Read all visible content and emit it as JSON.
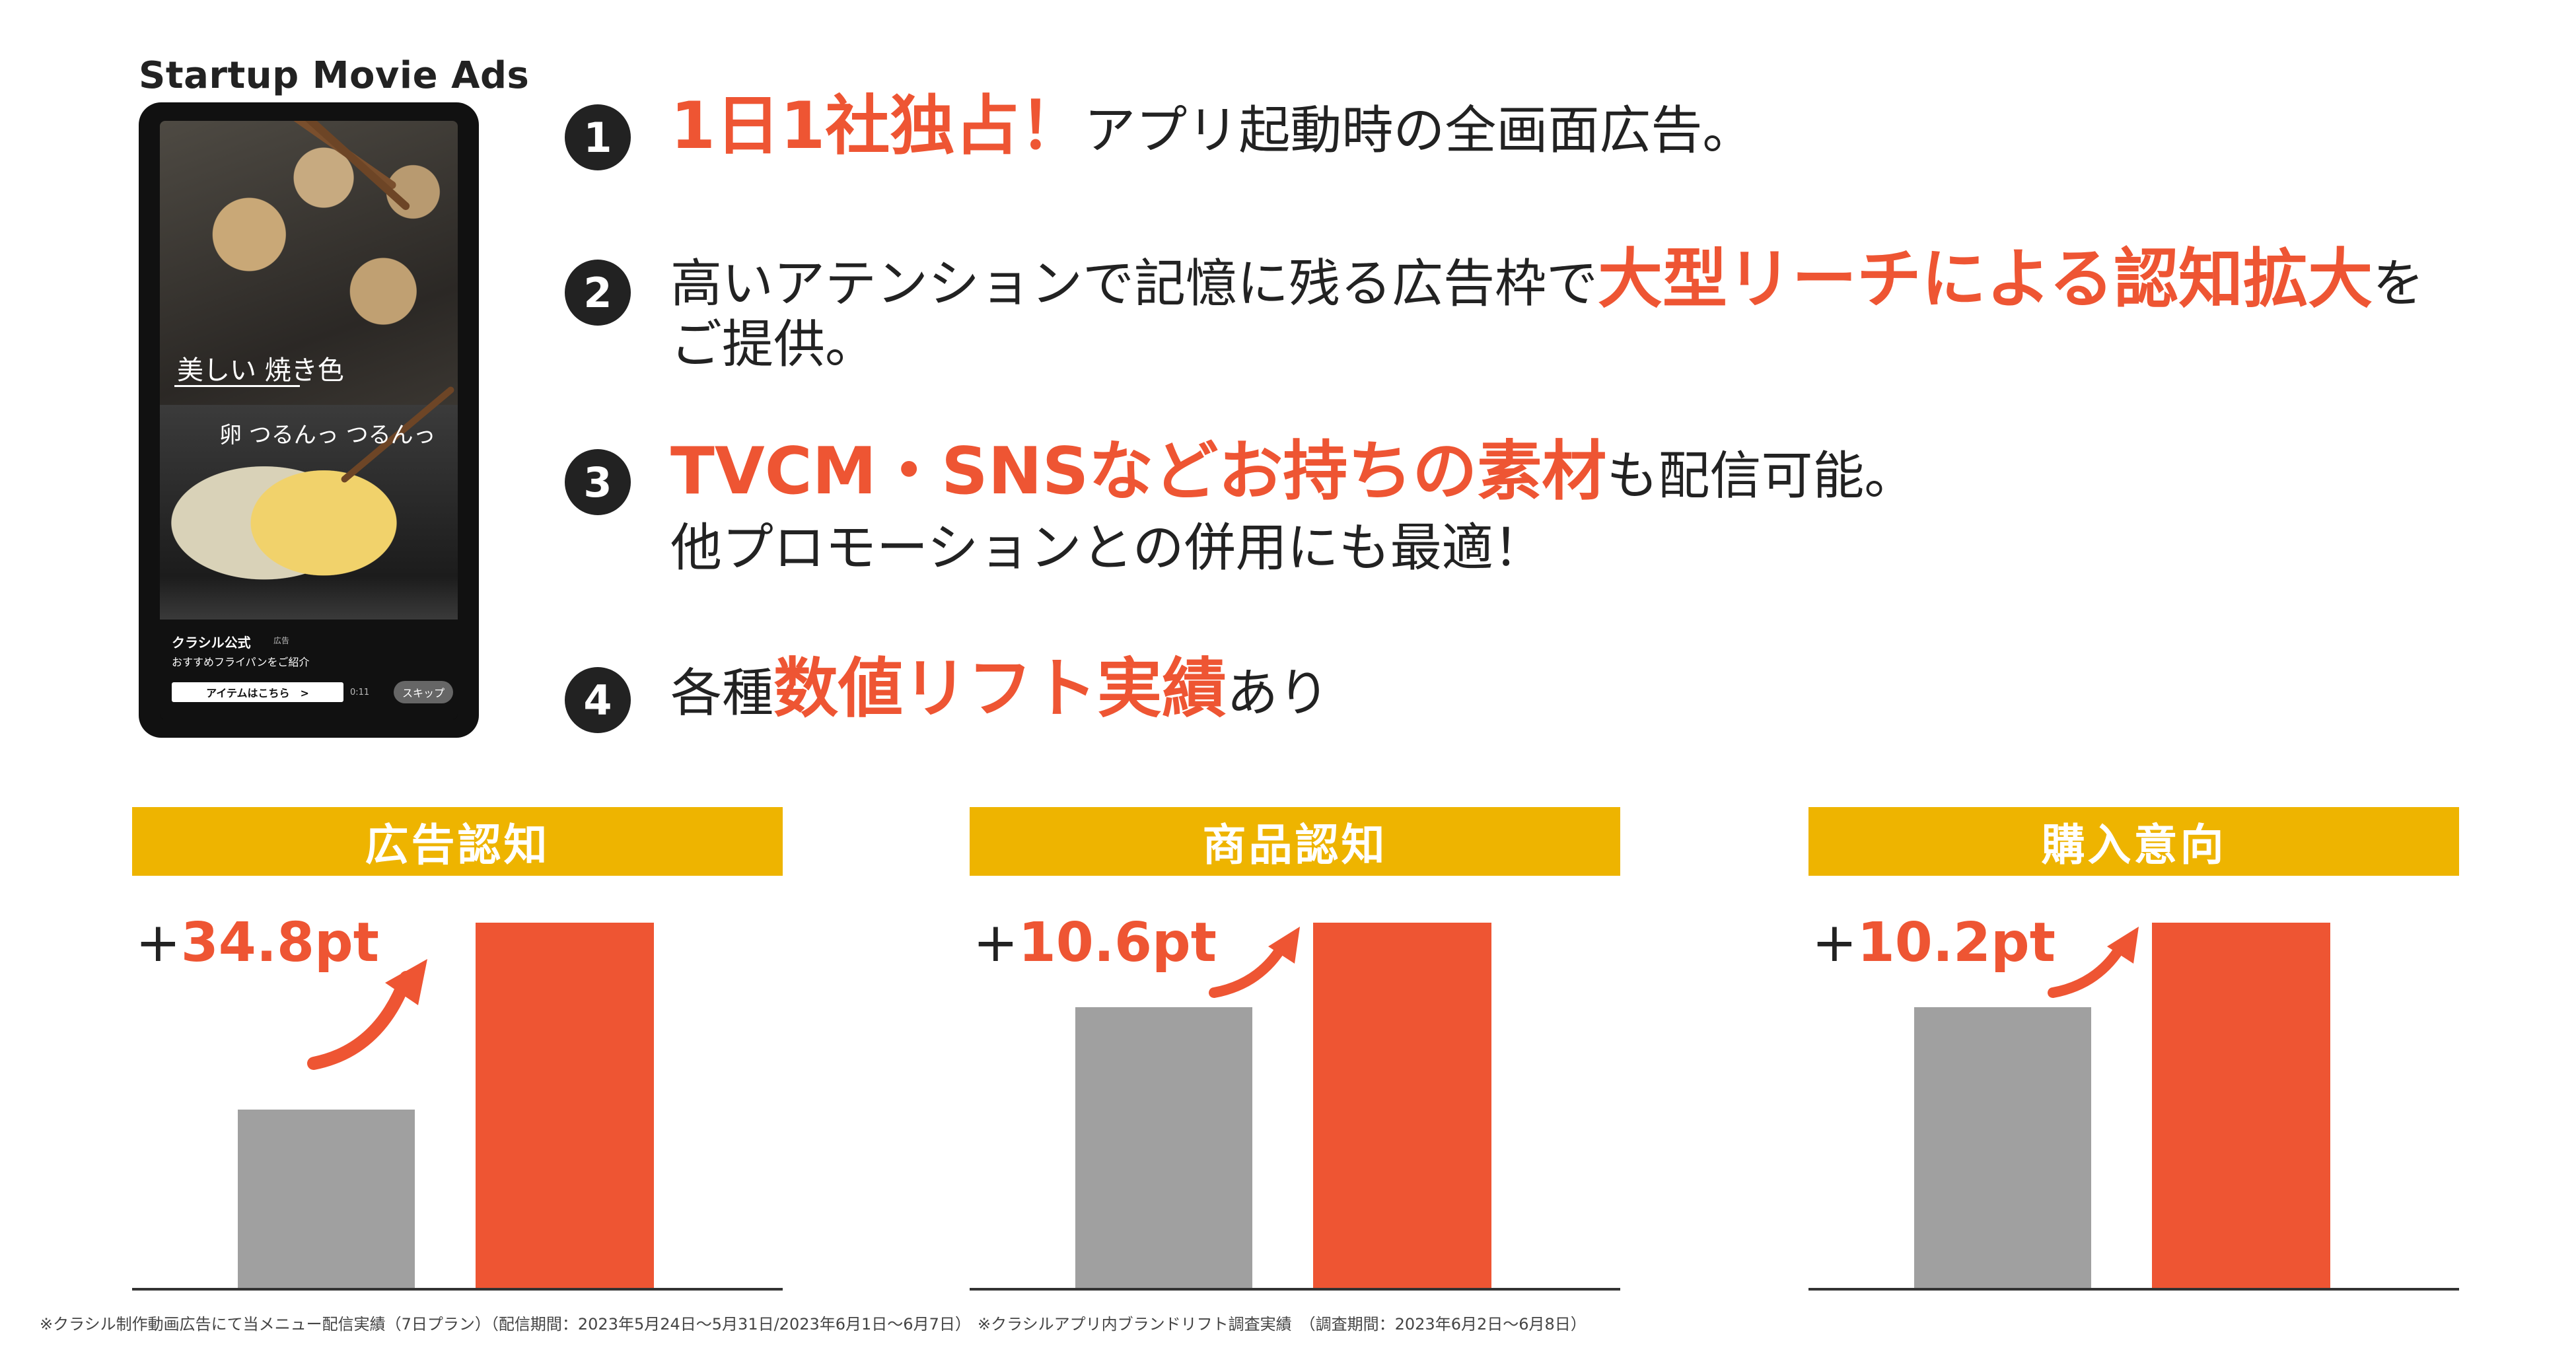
{
  "phone": {
    "title": "Startup Movie Ads",
    "caption1": "美しい 焼き色",
    "caption2": "卵 つるんっ つるんっ",
    "brand": "クラシル公式",
    "brand_tag": "広告",
    "brand_sub": "おすすめフライパンをご紹介",
    "item_button": "アイテムはこちら　>",
    "timer": "0:11",
    "skip_button": "スキップ"
  },
  "points": [
    {
      "num": "1",
      "highlight": "1日1社独占！",
      "rest": "アプリ起動時の全画面広告。"
    },
    {
      "num": "2",
      "pre": "高いアテンションで記憶に残る広告枠で",
      "highlight": "大型リーチによる認知拡大",
      "post": "を",
      "line2": "ご提供。"
    },
    {
      "num": "3",
      "highlight": "TVCM・SNSなどお持ちの素材",
      "rest": "も配信可能。",
      "line2": "他プロモーションとの併用にも最適！"
    },
    {
      "num": "4",
      "pre": "各種",
      "highlight": "数値リフト実績",
      "post": "あり"
    }
  ],
  "charts": [
    {
      "title": "広告認知",
      "lift": "34.8pt",
      "plus": "+",
      "before": 1.0,
      "after": 2.05
    },
    {
      "title": "商品認知",
      "lift": "10.6pt",
      "plus": "+",
      "before": 1.0,
      "after": 1.3
    },
    {
      "title": "購入意向",
      "lift": "10.2pt",
      "plus": "+",
      "before": 1.0,
      "after": 1.3
    }
  ],
  "colors": {
    "accent": "#ee5533",
    "band": "#eeb400",
    "baseline_bar": "#a0a0a0"
  },
  "footnotes": {
    "left": "※クラシル制作動画広告にて当メニュー配信実績（7日プラン）（配信期間：2023年5月24日〜5月31日/2023年6月1日〜6月7日）",
    "right": "※クラシルアプリ内ブランドリフト調査実績　（調査期間：2023年6月2日〜6月8日）"
  }
}
